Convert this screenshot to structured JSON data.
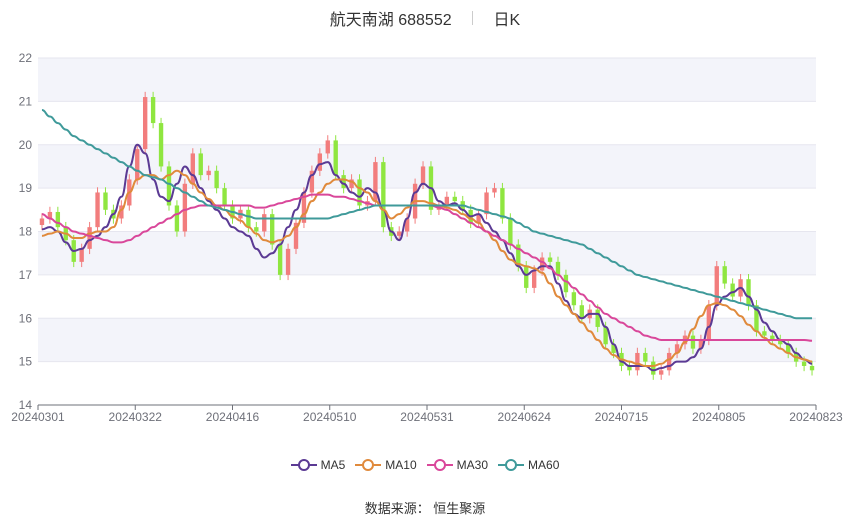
{
  "header": {
    "title": "航天南湖 688552",
    "period": "日K"
  },
  "source": "数据来源： 恒生聚源",
  "colors": {
    "up": "#f27d7d",
    "down": "#8fe640",
    "grid": "#e6e6ef",
    "band": "#f3f4fa",
    "axis": "#6e7079"
  },
  "chart_data": {
    "type": "candlestick",
    "title": "航天南湖 688552",
    "ylim": [
      14,
      22
    ],
    "yticks": [
      14,
      15,
      16,
      17,
      18,
      19,
      20,
      21,
      22
    ],
    "xticks": [
      "20240301",
      "20240322",
      "20240416",
      "20240510",
      "20240531",
      "20240624",
      "20240715",
      "20240805",
      "20240823"
    ],
    "legend": [
      {
        "name": "MA5",
        "color": "#5b3a94"
      },
      {
        "name": "MA10",
        "color": "#e08a3c"
      },
      {
        "name": "MA30",
        "color": "#d9479a"
      },
      {
        "name": "MA60",
        "color": "#3f9a9a"
      }
    ],
    "close": [
      18.3,
      18.45,
      18.1,
      17.8,
      17.3,
      17.6,
      18.1,
      18.9,
      18.5,
      18.3,
      18.6,
      19.2,
      19.9,
      21.1,
      20.5,
      19.5,
      18.6,
      18.0,
      19.1,
      19.8,
      19.3,
      19.4,
      19.0,
      18.6,
      18.3,
      18.5,
      18.1,
      18.0,
      18.4,
      17.7,
      17.0,
      17.6,
      18.2,
      18.9,
      19.4,
      19.8,
      20.1,
      19.3,
      19.0,
      19.2,
      18.6,
      18.7,
      19.6,
      18.1,
      17.9,
      18.0,
      18.3,
      19.1,
      19.5,
      18.5,
      18.6,
      18.8,
      18.7,
      18.5,
      18.2,
      18.4,
      18.9,
      19.0,
      18.3,
      17.7,
      17.2,
      16.7,
      17.1,
      17.4,
      17.3,
      17.0,
      16.6,
      16.3,
      16.0,
      16.2,
      15.8,
      15.4,
      15.2,
      14.9,
      14.8,
      15.2,
      15.0,
      14.7,
      14.8,
      15.2,
      15.4,
      15.6,
      15.3,
      15.5,
      16.3,
      17.2,
      16.8,
      16.5,
      16.9,
      16.3,
      15.7,
      15.6,
      15.5,
      15.4,
      15.2,
      15.0,
      14.9,
      14.8
    ],
    "series": [
      {
        "name": "MA5",
        "values": [
          18.05,
          18.1,
          18.0,
          17.75,
          17.55,
          17.6,
          17.8,
          17.9,
          18.1,
          18.4,
          18.8,
          19.5,
          20.0,
          19.8,
          19.2,
          18.8,
          18.7,
          19.1,
          19.5,
          19.3,
          19.0,
          18.7,
          18.5,
          18.3,
          18.1,
          18.0,
          17.9,
          17.6,
          17.4,
          17.5,
          17.7,
          18.1,
          18.5,
          18.9,
          19.3,
          19.55,
          19.6,
          19.3,
          19.1,
          18.9,
          18.8,
          19.0,
          18.9,
          18.5,
          18.0,
          17.8,
          18.3,
          18.9,
          19.1,
          19.0,
          18.7,
          18.6,
          18.65,
          18.5,
          18.35,
          18.4,
          18.2,
          18.0,
          17.8,
          17.5,
          17.2,
          17.0,
          17.1,
          17.2,
          17.2,
          16.8,
          16.4,
          16.1,
          16.0,
          16.1,
          16.1,
          15.8,
          15.4,
          15.0,
          14.9,
          14.9,
          14.9,
          14.8,
          14.85,
          14.9,
          15.0,
          15.0,
          15.1,
          15.3,
          15.8,
          16.3,
          16.5,
          16.6,
          16.7,
          16.5,
          16.2,
          15.9,
          15.7,
          15.5,
          15.4,
          15.2,
          15.05,
          14.95
        ]
      },
      {
        "name": "MA10",
        "values": [
          17.9,
          17.95,
          18.0,
          17.95,
          17.85,
          17.85,
          17.95,
          18.0,
          18.0,
          18.1,
          18.5,
          18.9,
          19.2,
          19.3,
          19.3,
          19.2,
          19.3,
          19.4,
          19.3,
          19.1,
          18.9,
          18.75,
          18.6,
          18.5,
          18.35,
          18.25,
          18.1,
          17.95,
          17.8,
          17.75,
          17.8,
          17.9,
          18.1,
          18.4,
          18.7,
          18.9,
          19.1,
          19.2,
          19.2,
          19.15,
          19.0,
          18.9,
          18.7,
          18.5,
          18.3,
          18.4,
          18.55,
          18.7,
          18.7,
          18.65,
          18.6,
          18.55,
          18.5,
          18.4,
          18.3,
          18.2,
          18.0,
          17.8,
          17.55,
          17.35,
          17.25,
          17.2,
          17.15,
          17.05,
          16.8,
          16.5,
          16.3,
          16.1,
          15.9,
          15.7,
          15.5,
          15.3,
          15.15,
          15.05,
          15.0,
          14.95,
          14.9,
          14.9,
          14.95,
          15.05,
          15.2,
          15.45,
          15.75,
          16.05,
          16.3,
          16.35,
          16.3,
          16.2,
          16.05,
          15.85,
          15.7,
          15.55,
          15.4,
          15.3,
          15.2,
          15.1,
          15.05,
          15.0
        ]
      },
      {
        "name": "MA30",
        "values": [
          18.4,
          18.3,
          18.2,
          18.1,
          18.0,
          17.95,
          17.9,
          17.85,
          17.8,
          17.75,
          17.75,
          17.8,
          17.9,
          18.0,
          18.1,
          18.2,
          18.3,
          18.4,
          18.5,
          18.55,
          18.6,
          18.6,
          18.6,
          18.6,
          18.6,
          18.6,
          18.6,
          18.55,
          18.55,
          18.6,
          18.65,
          18.7,
          18.75,
          18.8,
          18.85,
          18.85,
          18.85,
          18.8,
          18.8,
          18.75,
          18.7,
          18.65,
          18.6,
          18.6,
          18.6,
          18.6,
          18.6,
          18.6,
          18.6,
          18.6,
          18.55,
          18.5,
          18.4,
          18.3,
          18.2,
          18.1,
          18.0,
          17.9,
          17.8,
          17.7,
          17.6,
          17.5,
          17.4,
          17.3,
          17.15,
          17.0,
          16.85,
          16.7,
          16.55,
          16.4,
          16.25,
          16.1,
          16.0,
          15.9,
          15.8,
          15.7,
          15.6,
          15.55,
          15.5,
          15.5,
          15.5,
          15.5,
          15.5,
          15.5,
          15.5,
          15.5,
          15.5,
          15.5,
          15.5,
          15.5,
          15.5,
          15.5,
          15.5,
          15.5,
          15.5,
          15.5,
          15.5,
          15.48
        ]
      },
      {
        "name": "MA60",
        "values": [
          20.8,
          20.65,
          20.5,
          20.35,
          20.2,
          20.1,
          20.0,
          19.9,
          19.8,
          19.7,
          19.6,
          19.5,
          19.4,
          19.3,
          19.25,
          19.2,
          19.1,
          19.0,
          18.9,
          18.8,
          18.7,
          18.6,
          18.55,
          18.5,
          18.45,
          18.4,
          18.35,
          18.3,
          18.3,
          18.3,
          18.3,
          18.3,
          18.3,
          18.3,
          18.3,
          18.3,
          18.3,
          18.35,
          18.4,
          18.45,
          18.5,
          18.55,
          18.6,
          18.6,
          18.6,
          18.6,
          18.6,
          18.6,
          18.6,
          18.6,
          18.6,
          18.6,
          18.6,
          18.6,
          18.55,
          18.5,
          18.45,
          18.4,
          18.35,
          18.3,
          18.2,
          18.1,
          18.0,
          17.95,
          17.9,
          17.85,
          17.8,
          17.75,
          17.7,
          17.6,
          17.5,
          17.4,
          17.3,
          17.2,
          17.1,
          17.0,
          16.95,
          16.9,
          16.85,
          16.8,
          16.75,
          16.7,
          16.65,
          16.6,
          16.55,
          16.5,
          16.45,
          16.4,
          16.35,
          16.3,
          16.25,
          16.2,
          16.15,
          16.1,
          16.05,
          16.0,
          16.0,
          16.0
        ]
      }
    ]
  }
}
